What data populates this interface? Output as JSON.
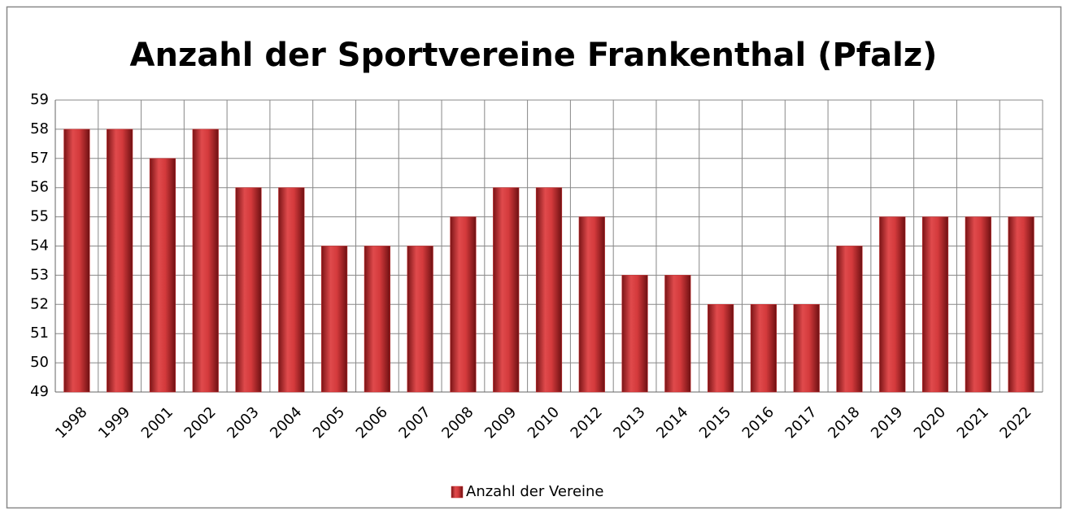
{
  "chart_data": {
    "type": "bar",
    "title": "Anzahl der Sportvereine Frankenthal (Pfalz)",
    "categories": [
      "1998",
      "1999",
      "2001",
      "2002",
      "2003",
      "2004",
      "2005",
      "2006",
      "2007",
      "2008",
      "2009",
      "2010",
      "2012",
      "2013",
      "2014",
      "2015",
      "2016",
      "2017",
      "2018",
      "2019",
      "2020",
      "2021",
      "2022"
    ],
    "series": [
      {
        "name": "Anzahl der Vereine",
        "color": "#c8282a",
        "values": [
          58,
          58,
          57,
          58,
          56,
          56,
          54,
          54,
          54,
          55,
          56,
          56,
          55,
          53,
          53,
          52,
          52,
          52,
          54,
          55,
          55,
          55,
          55
        ]
      }
    ],
    "ylim": [
      49,
      59
    ],
    "yticks": [
      49,
      50,
      51,
      52,
      53,
      54,
      55,
      56,
      57,
      58,
      59
    ],
    "grid": true,
    "legend": "bottom"
  }
}
